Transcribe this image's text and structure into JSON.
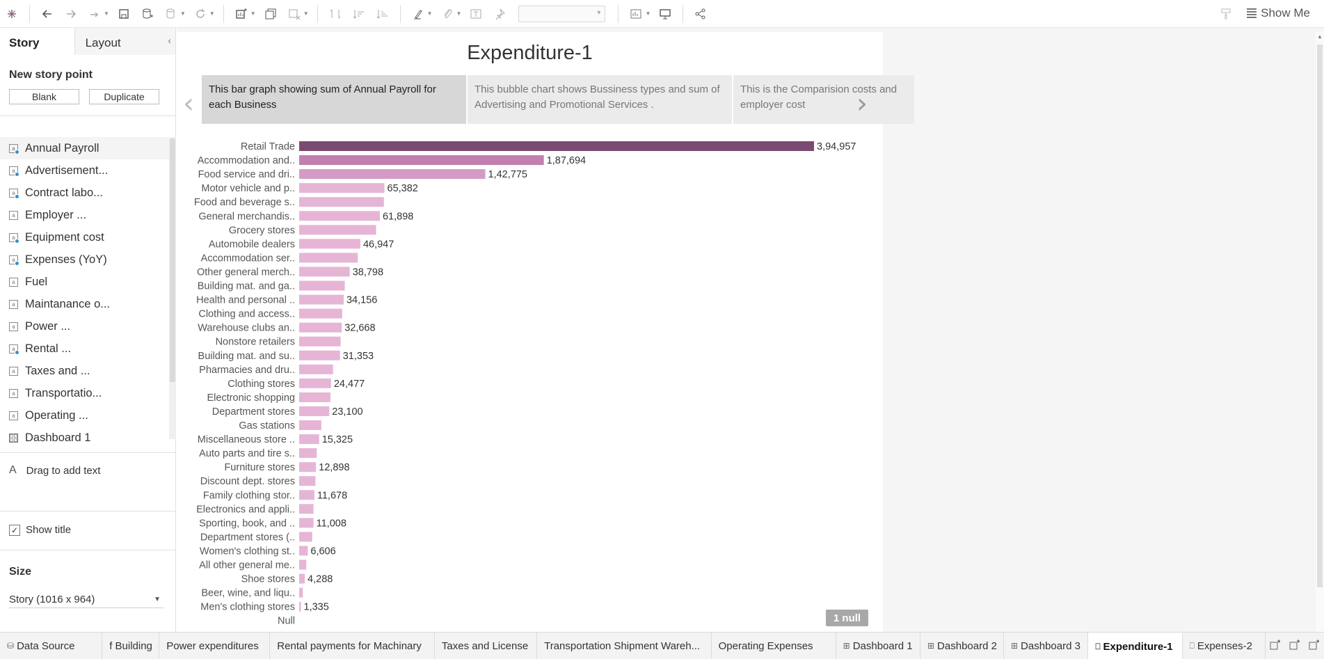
{
  "toolbar": {
    "show_me_label": "Show Me"
  },
  "left_panel": {
    "tabs": {
      "story": "Story",
      "layout": "Layout"
    },
    "new_story_point": "New story point",
    "blank_label": "Blank",
    "duplicate_label": "Duplicate",
    "sheets": [
      {
        "label": "Annual Payroll",
        "dot": true
      },
      {
        "label": "Advertisement...",
        "dot": true
      },
      {
        "label": "Contract labo...",
        "dot": true
      },
      {
        "label": "Employer ...",
        "dot": false
      },
      {
        "label": "Equipment cost",
        "dot": true
      },
      {
        "label": "Expenses (YoY)",
        "dot": true
      },
      {
        "label": "Fuel",
        "dot": false
      },
      {
        "label": "Maintanance o...",
        "dot": false
      },
      {
        "label": "Power ...",
        "dot": false
      },
      {
        "label": "Rental ...",
        "dot": true
      },
      {
        "label": "Taxes and ...",
        "dot": false
      },
      {
        "label": "Transportatio...",
        "dot": false
      },
      {
        "label": "Operating ...",
        "dot": false
      },
      {
        "label": "Dashboard 1",
        "dashboard": true
      }
    ],
    "drag_text": "Drag to add text",
    "show_title": "Show title",
    "size_title": "Size",
    "size_value": "Story (1016 x 964)"
  },
  "story": {
    "title": "Expenditure-1",
    "points": [
      "This bar graph showing sum of Annual Payroll for each Business",
      "This bubble chart shows Bussiness types and sum of Advertising and Promotional Services .",
      "This is the Comparision costs and employer cost"
    ],
    "null_badge": "1 null"
  },
  "chart_data": {
    "type": "bar",
    "orientation": "horizontal",
    "categories": [
      "Retail Trade",
      "Accommodation and..",
      "Food service and dri..",
      "Motor vehicle and p..",
      "Food and beverage s..",
      "General merchandis..",
      "Grocery stores",
      "Automobile dealers",
      "Accommodation ser..",
      "Other general merch..",
      "Building mat. and ga..",
      "Health and personal ..",
      "Clothing and access..",
      "Warehouse clubs an..",
      "Nonstore retailers",
      "Building mat. and su..",
      "Pharmacies and dru..",
      "Clothing stores",
      "Electronic shopping",
      "Department stores",
      "Gas stations",
      "Miscellaneous store ..",
      "Auto parts and tire s..",
      "Furniture stores",
      "Discount dept. stores",
      "Family clothing stor..",
      "Electronics and appli..",
      "Sporting, book, and ..",
      "Department stores (..",
      "Women's clothing st..",
      "All other general me..",
      "Shoe stores",
      "Beer, wine, and liqu..",
      "Men's clothing stores",
      "Null"
    ],
    "values": [
      394957,
      187694,
      142775,
      65382,
      65000,
      61898,
      59000,
      46947,
      45000,
      38798,
      35000,
      34156,
      33000,
      32668,
      31800,
      31353,
      26000,
      24477,
      24000,
      23100,
      17000,
      15325,
      13500,
      12898,
      12500,
      11678,
      11000,
      11008,
      10000,
      6606,
      5500,
      4288,
      2800,
      1335,
      0
    ],
    "data_labels": [
      "3,94,957",
      "1,87,694",
      "1,42,775",
      "65,382",
      "",
      "61,898",
      "",
      "46,947",
      "",
      "38,798",
      "",
      "34,156",
      "",
      "32,668",
      "",
      "31,353",
      "",
      "24,477",
      "",
      "23,100",
      "",
      "15,325",
      "",
      "12,898",
      "",
      "11,678",
      "",
      "11,008",
      "",
      "6,606",
      "",
      "4,288",
      "",
      "1,335",
      ""
    ],
    "colors": {
      "max": "#7a4a72",
      "high": "#c27fb0",
      "mid": "#d39bc6",
      "low": "#e6b5d6"
    },
    "xlim": [
      0,
      420000
    ]
  },
  "bottom_tabs": [
    {
      "label": "Data Source",
      "icon": "db"
    },
    {
      "label": "f Building",
      "icon": ""
    },
    {
      "label": "Power expenditures",
      "icon": ""
    },
    {
      "label": "Rental payments for Machinary",
      "icon": ""
    },
    {
      "label": "Taxes and License",
      "icon": ""
    },
    {
      "label": "Transportation Shipment Wareh...",
      "icon": ""
    },
    {
      "label": "Operating Expenses",
      "icon": ""
    },
    {
      "label": "Dashboard 1",
      "icon": "dash"
    },
    {
      "label": "Dashboard 2",
      "icon": "dash"
    },
    {
      "label": "Dashboard 3",
      "icon": "dash"
    },
    {
      "label": "Expenditure-1",
      "icon": "story",
      "active": true
    },
    {
      "label": "Expenses-2",
      "icon": "story"
    }
  ]
}
